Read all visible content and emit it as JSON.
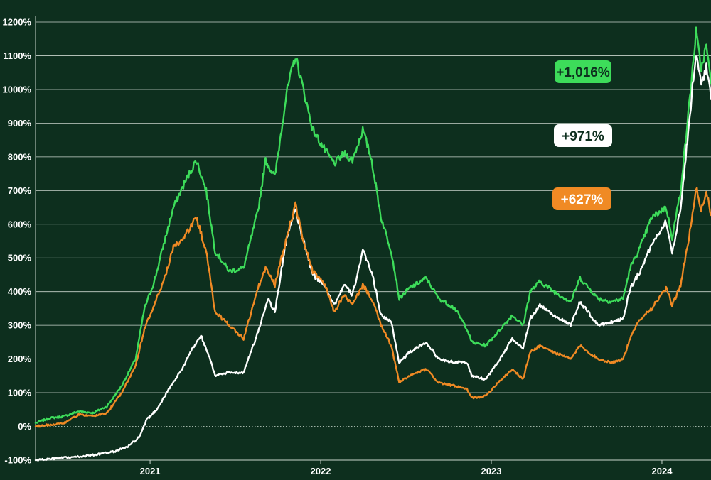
{
  "chart_data": {
    "type": "line",
    "title": "",
    "xlabel": "",
    "ylabel": "",
    "ylim": [
      -100,
      1200
    ],
    "xlim": [
      "2020-05-01",
      "2024-04-15"
    ],
    "grid": true,
    "legend": "none",
    "y_ticks": [
      -100,
      0,
      100,
      200,
      300,
      400,
      500,
      600,
      700,
      800,
      900,
      1000,
      1100,
      1200
    ],
    "y_tick_labels": [
      "-100%",
      "0%",
      "100%",
      "200%",
      "300%",
      "400%",
      "500%",
      "600%",
      "700%",
      "800%",
      "900%",
      "1000%",
      "1100%",
      "1200%"
    ],
    "x_ticks": [
      "2021-01-01",
      "2022-01-01",
      "2023-01-01",
      "2024-01-01"
    ],
    "x_tick_labels": [
      "2021",
      "2022",
      "2023",
      "2024"
    ],
    "series": [
      {
        "color": "#3ddc5a",
        "end_label": "+1,016%",
        "points": [
          [
            "2020-05-01",
            10
          ],
          [
            "2020-06-01",
            25
          ],
          [
            "2020-07-01",
            30
          ],
          [
            "2020-08-01",
            45
          ],
          [
            "2020-09-01",
            40
          ],
          [
            "2020-10-01",
            60
          ],
          [
            "2020-11-01",
            120
          ],
          [
            "2020-12-01",
            200
          ],
          [
            "2020-12-20",
            350
          ],
          [
            "2021-01-10",
            430
          ],
          [
            "2021-02-01",
            550
          ],
          [
            "2021-02-20",
            650
          ],
          [
            "2021-03-15",
            720
          ],
          [
            "2021-04-10",
            790
          ],
          [
            "2021-05-01",
            700
          ],
          [
            "2021-05-20",
            520
          ],
          [
            "2021-06-20",
            460
          ],
          [
            "2021-07-20",
            470
          ],
          [
            "2021-08-20",
            640
          ],
          [
            "2021-09-05",
            790
          ],
          [
            "2021-09-25",
            740
          ],
          [
            "2021-10-20",
            990
          ],
          [
            "2021-11-08",
            1100
          ],
          [
            "2021-11-25",
            1000
          ],
          [
            "2021-12-15",
            880
          ],
          [
            "2022-01-10",
            820
          ],
          [
            "2022-01-30",
            780
          ],
          [
            "2022-02-20",
            810
          ],
          [
            "2022-03-10",
            790
          ],
          [
            "2022-04-01",
            880
          ],
          [
            "2022-04-20",
            790
          ],
          [
            "2022-05-10",
            620
          ],
          [
            "2022-06-01",
            520
          ],
          [
            "2022-06-18",
            380
          ],
          [
            "2022-07-10",
            410
          ],
          [
            "2022-08-15",
            440
          ],
          [
            "2022-09-10",
            380
          ],
          [
            "2022-10-15",
            350
          ],
          [
            "2022-11-10",
            290
          ],
          [
            "2022-11-20",
            250
          ],
          [
            "2022-12-20",
            240
          ],
          [
            "2023-01-15",
            280
          ],
          [
            "2023-02-15",
            330
          ],
          [
            "2023-03-10",
            300
          ],
          [
            "2023-03-25",
            400
          ],
          [
            "2023-04-15",
            430
          ],
          [
            "2023-05-15",
            400
          ],
          [
            "2023-06-20",
            370
          ],
          [
            "2023-07-10",
            440
          ],
          [
            "2023-08-17",
            380
          ],
          [
            "2023-09-15",
            370
          ],
          [
            "2023-10-10",
            380
          ],
          [
            "2023-10-25",
            470
          ],
          [
            "2023-11-15",
            530
          ],
          [
            "2023-12-10",
            620
          ],
          [
            "2024-01-10",
            650
          ],
          [
            "2024-01-23",
            560
          ],
          [
            "2024-02-10",
            700
          ],
          [
            "2024-02-28",
            950
          ],
          [
            "2024-03-14",
            1170
          ],
          [
            "2024-03-25",
            1060
          ],
          [
            "2024-04-05",
            1130
          ],
          [
            "2024-04-15",
            1016
          ]
        ]
      },
      {
        "color": "#ffffff",
        "end_label": "+971%",
        "points": [
          [
            "2020-05-01",
            -100
          ],
          [
            "2020-06-15",
            -95
          ],
          [
            "2020-08-01",
            -90
          ],
          [
            "2020-09-15",
            -82
          ],
          [
            "2020-10-15",
            -75
          ],
          [
            "2020-11-15",
            -60
          ],
          [
            "2020-12-10",
            -30
          ],
          [
            "2020-12-25",
            20
          ],
          [
            "2021-01-15",
            50
          ],
          [
            "2021-02-10",
            110
          ],
          [
            "2021-03-10",
            170
          ],
          [
            "2021-04-01",
            230
          ],
          [
            "2021-04-20",
            270
          ],
          [
            "2021-05-10",
            200
          ],
          [
            "2021-05-20",
            150
          ],
          [
            "2021-06-20",
            160
          ],
          [
            "2021-07-20",
            160
          ],
          [
            "2021-08-20",
            280
          ],
          [
            "2021-09-10",
            380
          ],
          [
            "2021-09-25",
            340
          ],
          [
            "2021-10-20",
            560
          ],
          [
            "2021-11-08",
            640
          ],
          [
            "2021-11-25",
            550
          ],
          [
            "2021-12-15",
            450
          ],
          [
            "2022-01-10",
            420
          ],
          [
            "2022-01-30",
            360
          ],
          [
            "2022-02-20",
            420
          ],
          [
            "2022-03-10",
            390
          ],
          [
            "2022-04-01",
            520
          ],
          [
            "2022-04-20",
            460
          ],
          [
            "2022-05-10",
            330
          ],
          [
            "2022-06-01",
            310
          ],
          [
            "2022-06-18",
            190
          ],
          [
            "2022-07-10",
            220
          ],
          [
            "2022-08-15",
            250
          ],
          [
            "2022-09-10",
            200
          ],
          [
            "2022-10-15",
            190
          ],
          [
            "2022-11-10",
            190
          ],
          [
            "2022-11-20",
            150
          ],
          [
            "2022-12-20",
            140
          ],
          [
            "2023-01-15",
            190
          ],
          [
            "2023-02-15",
            260
          ],
          [
            "2023-03-10",
            230
          ],
          [
            "2023-03-25",
            320
          ],
          [
            "2023-04-15",
            360
          ],
          [
            "2023-05-15",
            330
          ],
          [
            "2023-06-20",
            300
          ],
          [
            "2023-07-10",
            370
          ],
          [
            "2023-08-17",
            300
          ],
          [
            "2023-09-15",
            310
          ],
          [
            "2023-10-10",
            320
          ],
          [
            "2023-10-25",
            410
          ],
          [
            "2023-11-15",
            460
          ],
          [
            "2023-12-10",
            540
          ],
          [
            "2024-01-10",
            610
          ],
          [
            "2024-01-23",
            510
          ],
          [
            "2024-02-10",
            650
          ],
          [
            "2024-02-28",
            900
          ],
          [
            "2024-03-14",
            1110
          ],
          [
            "2024-03-25",
            1010
          ],
          [
            "2024-04-05",
            1070
          ],
          [
            "2024-04-15",
            971
          ]
        ]
      },
      {
        "color": "#f08a24",
        "end_label": "+627%",
        "points": [
          [
            "2020-05-01",
            0
          ],
          [
            "2020-06-01",
            5
          ],
          [
            "2020-07-01",
            10
          ],
          [
            "2020-08-01",
            35
          ],
          [
            "2020-09-01",
            30
          ],
          [
            "2020-10-01",
            40
          ],
          [
            "2020-11-01",
            100
          ],
          [
            "2020-12-01",
            180
          ],
          [
            "2020-12-20",
            290
          ],
          [
            "2021-01-10",
            360
          ],
          [
            "2021-02-01",
            440
          ],
          [
            "2021-02-20",
            530
          ],
          [
            "2021-03-15",
            560
          ],
          [
            "2021-04-10",
            620
          ],
          [
            "2021-05-01",
            520
          ],
          [
            "2021-05-20",
            340
          ],
          [
            "2021-06-20",
            300
          ],
          [
            "2021-07-20",
            260
          ],
          [
            "2021-08-20",
            410
          ],
          [
            "2021-09-05",
            470
          ],
          [
            "2021-09-25",
            420
          ],
          [
            "2021-10-20",
            560
          ],
          [
            "2021-11-08",
            660
          ],
          [
            "2021-11-25",
            550
          ],
          [
            "2021-12-15",
            460
          ],
          [
            "2022-01-10",
            420
          ],
          [
            "2022-01-30",
            340
          ],
          [
            "2022-02-20",
            390
          ],
          [
            "2022-03-10",
            360
          ],
          [
            "2022-04-01",
            420
          ],
          [
            "2022-04-20",
            380
          ],
          [
            "2022-05-10",
            300
          ],
          [
            "2022-06-01",
            240
          ],
          [
            "2022-06-18",
            130
          ],
          [
            "2022-07-10",
            150
          ],
          [
            "2022-08-15",
            170
          ],
          [
            "2022-09-10",
            130
          ],
          [
            "2022-10-15",
            120
          ],
          [
            "2022-11-10",
            110
          ],
          [
            "2022-11-20",
            85
          ],
          [
            "2022-12-20",
            90
          ],
          [
            "2023-01-15",
            130
          ],
          [
            "2023-02-15",
            170
          ],
          [
            "2023-03-10",
            140
          ],
          [
            "2023-03-25",
            220
          ],
          [
            "2023-04-15",
            240
          ],
          [
            "2023-05-15",
            220
          ],
          [
            "2023-06-20",
            200
          ],
          [
            "2023-07-10",
            240
          ],
          [
            "2023-08-17",
            200
          ],
          [
            "2023-09-15",
            190
          ],
          [
            "2023-10-10",
            200
          ],
          [
            "2023-10-25",
            260
          ],
          [
            "2023-11-15",
            320
          ],
          [
            "2023-12-10",
            350
          ],
          [
            "2024-01-10",
            410
          ],
          [
            "2024-01-23",
            360
          ],
          [
            "2024-02-10",
            420
          ],
          [
            "2024-02-28",
            560
          ],
          [
            "2024-03-14",
            710
          ],
          [
            "2024-03-25",
            640
          ],
          [
            "2024-04-05",
            700
          ],
          [
            "2024-04-15",
            627
          ]
        ]
      }
    ]
  }
}
